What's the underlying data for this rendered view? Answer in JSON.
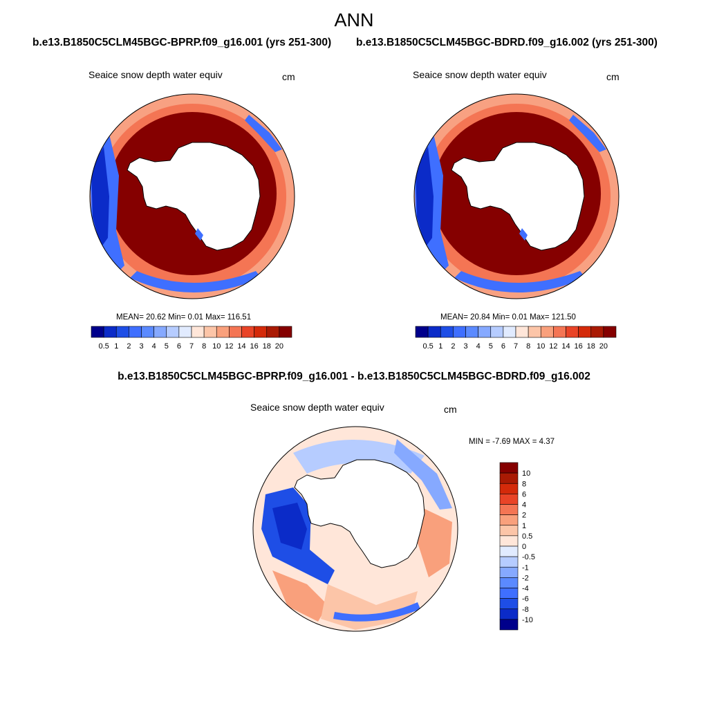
{
  "title": "ANN",
  "colors": {
    "seq": [
      "#00008b",
      "#0b2bc8",
      "#1e4ee6",
      "#3f6fff",
      "#5b8aff",
      "#86a9ff",
      "#b6ccff",
      "#e1ebff",
      "#ffe6d9",
      "#fcc5a8",
      "#f9a07c",
      "#f47554",
      "#e94427",
      "#d42a0a",
      "#a91a04",
      "#850000"
    ],
    "diff": [
      "#00008b",
      "#0b2bc8",
      "#1e4ee6",
      "#3f6fff",
      "#5b8aff",
      "#86a9ff",
      "#b6ccff",
      "#e1ebff",
      "#ffe6d9",
      "#fcc5a8",
      "#f9a07c",
      "#f47554",
      "#e94427",
      "#d42a0a",
      "#a91a04",
      "#850000"
    ],
    "land": "#ffffff",
    "coast": "#000000"
  },
  "panels": [
    {
      "case": "b.e13.B1850C5CLM45BGC-BPRP.f09_g16.001 (yrs 251-300)",
      "variable": "Seaice snow depth water equiv",
      "units": "cm",
      "stats_label": "MEAN=  20.62  Min=   0.01  Max= 116.51",
      "colorbar_labels": [
        "0.5",
        "1",
        "2",
        "3",
        "4",
        "5",
        "6",
        "7",
        "8",
        "10",
        "12",
        "14",
        "16",
        "18",
        "20"
      ]
    },
    {
      "case": "b.e13.B1850C5CLM45BGC-BDRD.f09_g16.002 (yrs 251-300)",
      "variable": "Seaice snow depth water equiv",
      "units": "cm",
      "stats_label": "MEAN=  20.84  Min=   0.01  Max= 121.50",
      "colorbar_labels": [
        "0.5",
        "1",
        "2",
        "3",
        "4",
        "5",
        "6",
        "7",
        "8",
        "10",
        "12",
        "14",
        "16",
        "18",
        "20"
      ]
    }
  ],
  "diff_panel": {
    "title": "b.e13.B1850C5CLM45BGC-BPRP.f09_g16.001 - b.e13.B1850C5CLM45BGC-BDRD.f09_g16.002",
    "variable": "Seaice snow depth water equiv",
    "units": "cm",
    "minmax_label": "MIN =  -7.69 MAX =   4.37",
    "colorbar_labels": [
      "10",
      "8",
      "6",
      "4",
      "2",
      "1",
      "0.5",
      "0",
      "-0.5",
      "-1",
      "-2",
      "-4",
      "-6",
      "-8",
      "-10"
    ]
  }
}
